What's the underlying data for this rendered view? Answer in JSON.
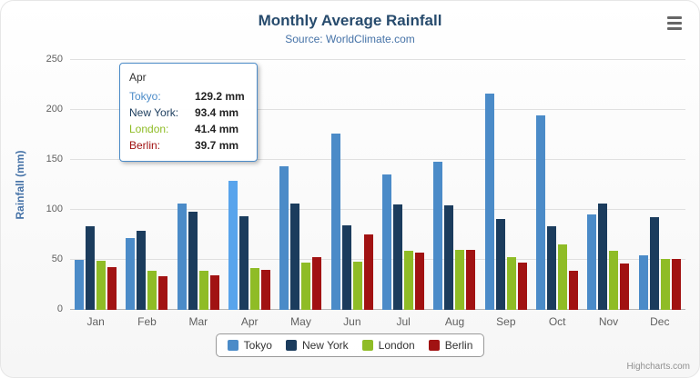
{
  "chart_data": {
    "type": "bar",
    "title": "Monthly Average Rainfall",
    "subtitle": "Source: WorldClimate.com",
    "xlabel": "",
    "ylabel": "Rainfall (mm)",
    "ylim": [
      0,
      250
    ],
    "ytick_step": 50,
    "grid": true,
    "legend_position": "bottom",
    "categories": [
      "Jan",
      "Feb",
      "Mar",
      "Apr",
      "May",
      "Jun",
      "Jul",
      "Aug",
      "Sep",
      "Oct",
      "Nov",
      "Dec"
    ],
    "series": [
      {
        "name": "Tokyo",
        "color": "#4B8BC8",
        "values": [
          49.9,
          71.5,
          106.4,
          129.2,
          144.0,
          176.0,
          135.6,
          148.5,
          216.4,
          194.1,
          95.6,
          54.4
        ]
      },
      {
        "name": "New York",
        "color": "#1B3C5D",
        "values": [
          83.6,
          78.8,
          98.5,
          93.4,
          106.0,
          84.5,
          105.0,
          104.3,
          91.2,
          83.5,
          106.6,
          92.3
        ]
      },
      {
        "name": "London",
        "color": "#8FBC26",
        "values": [
          48.9,
          38.8,
          39.3,
          41.4,
          47.0,
          48.3,
          59.0,
          59.6,
          52.4,
          65.2,
          59.3,
          51.2
        ]
      },
      {
        "name": "Berlin",
        "color": "#A11212",
        "values": [
          42.4,
          33.2,
          34.5,
          39.7,
          52.6,
          75.5,
          57.4,
          60.4,
          47.6,
          39.1,
          46.8,
          51.1
        ]
      }
    ]
  },
  "tooltip": {
    "header": "Apr",
    "hover_series": "Tokyo",
    "hover_category": "Apr",
    "rows": [
      {
        "name": "Tokyo:",
        "value": "129.2 mm",
        "color": "#4B8BC8"
      },
      {
        "name": "New York:",
        "value": "93.4 mm",
        "color": "#1B3C5D"
      },
      {
        "name": "London:",
        "value": "41.4 mm",
        "color": "#8FBC26"
      },
      {
        "name": "Berlin:",
        "value": "39.7 mm",
        "color": "#A11212"
      }
    ]
  },
  "icons": {
    "export_menu": "hamburger-icon"
  },
  "credits": "Highcharts.com"
}
